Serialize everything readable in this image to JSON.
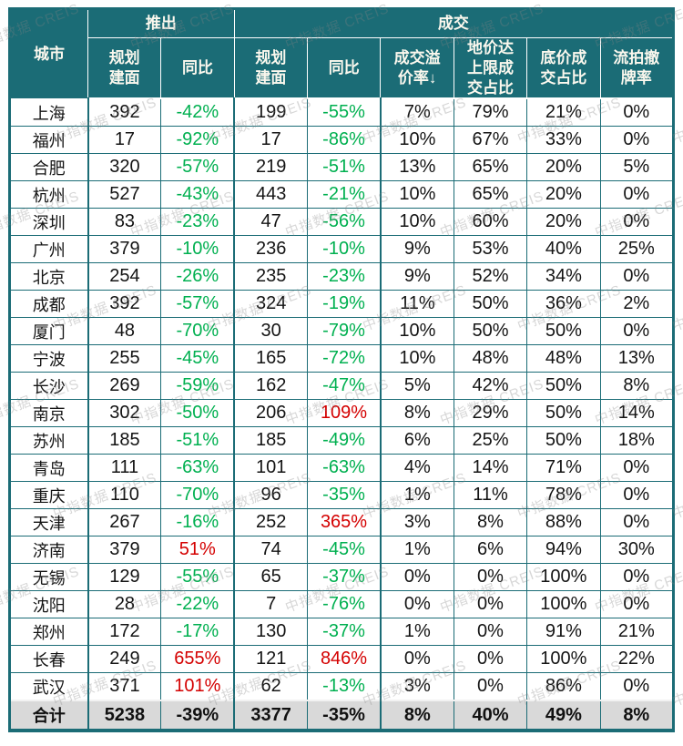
{
  "watermark": {
    "text": "中指数据 CREIS"
  },
  "colors": {
    "header_background": "#1B6C76",
    "header_text": "#FBF8EE",
    "negative_green": "#00B050",
    "positive_red": "#D40000",
    "grid_border": "#1B6C76",
    "total_row_background": "#D9D9D9"
  },
  "header": {
    "city": "城市",
    "groups": [
      {
        "label": "推出"
      },
      {
        "label": "成交"
      }
    ],
    "sub": [
      "规划\n建面",
      "同比",
      "规划\n建面",
      "同比",
      "成交溢\n价率↓",
      "地价达\n上限成\n交占比",
      "底价成\n交占比",
      "流拍撤\n牌率"
    ],
    "sort_icon": "down-arrow"
  },
  "chart_data": {
    "type": "table",
    "row_header": "城市",
    "column_groups": [
      {
        "label": "推出",
        "columns": [
          "规划建面",
          "同比"
        ]
      },
      {
        "label": "成交",
        "columns": [
          "规划建面",
          "同比",
          "成交溢价率",
          "地价达上限成交占比",
          "底价成交占比",
          "流拍撤牌率"
        ]
      }
    ],
    "rows": [
      {
        "city": "上海",
        "values": [
          "392",
          "-42%",
          "199",
          "-55%",
          "7%",
          "79%",
          "21%",
          "0%"
        ]
      },
      {
        "city": "福州",
        "values": [
          "17",
          "-92%",
          "17",
          "-86%",
          "10%",
          "67%",
          "33%",
          "0%"
        ]
      },
      {
        "city": "合肥",
        "values": [
          "320",
          "-57%",
          "219",
          "-51%",
          "13%",
          "65%",
          "20%",
          "5%"
        ]
      },
      {
        "city": "杭州",
        "values": [
          "527",
          "-43%",
          "443",
          "-21%",
          "10%",
          "65%",
          "20%",
          "0%"
        ]
      },
      {
        "city": "深圳",
        "values": [
          "83",
          "-23%",
          "47",
          "-56%",
          "10%",
          "60%",
          "20%",
          "0%"
        ]
      },
      {
        "city": "广州",
        "values": [
          "379",
          "-10%",
          "236",
          "-10%",
          "9%",
          "53%",
          "40%",
          "25%"
        ]
      },
      {
        "city": "北京",
        "values": [
          "254",
          "-26%",
          "235",
          "-23%",
          "9%",
          "52%",
          "34%",
          "0%"
        ]
      },
      {
        "city": "成都",
        "values": [
          "392",
          "-57%",
          "324",
          "-19%",
          "11%",
          "50%",
          "36%",
          "2%"
        ]
      },
      {
        "city": "厦门",
        "values": [
          "48",
          "-70%",
          "30",
          "-79%",
          "10%",
          "50%",
          "50%",
          "0%"
        ]
      },
      {
        "city": "宁波",
        "values": [
          "255",
          "-45%",
          "165",
          "-72%",
          "10%",
          "48%",
          "48%",
          "13%"
        ]
      },
      {
        "city": "长沙",
        "values": [
          "269",
          "-59%",
          "162",
          "-47%",
          "5%",
          "42%",
          "50%",
          "8%"
        ]
      },
      {
        "city": "南京",
        "values": [
          "302",
          "-50%",
          "206",
          "109%",
          "8%",
          "29%",
          "50%",
          "14%"
        ]
      },
      {
        "city": "苏州",
        "values": [
          "185",
          "-51%",
          "185",
          "-49%",
          "6%",
          "25%",
          "50%",
          "18%"
        ]
      },
      {
        "city": "青岛",
        "values": [
          "111",
          "-63%",
          "101",
          "-63%",
          "4%",
          "14%",
          "71%",
          "0%"
        ]
      },
      {
        "city": "重庆",
        "values": [
          "110",
          "-70%",
          "96",
          "-35%",
          "1%",
          "11%",
          "78%",
          "0%"
        ]
      },
      {
        "city": "天津",
        "values": [
          "267",
          "-16%",
          "252",
          "365%",
          "3%",
          "8%",
          "88%",
          "0%"
        ]
      },
      {
        "city": "济南",
        "values": [
          "379",
          "51%",
          "74",
          "-45%",
          "1%",
          "6%",
          "94%",
          "30%"
        ]
      },
      {
        "city": "无锡",
        "values": [
          "129",
          "-55%",
          "65",
          "-37%",
          "0%",
          "0%",
          "100%",
          "0%"
        ]
      },
      {
        "city": "沈阳",
        "values": [
          "28",
          "-22%",
          "7",
          "-76%",
          "0%",
          "0%",
          "100%",
          "0%"
        ]
      },
      {
        "city": "郑州",
        "values": [
          "172",
          "-17%",
          "130",
          "-37%",
          "1%",
          "0%",
          "91%",
          "21%"
        ]
      },
      {
        "city": "长春",
        "values": [
          "249",
          "655%",
          "121",
          "846%",
          "0%",
          "0%",
          "100%",
          "22%"
        ]
      },
      {
        "city": "武汉",
        "values": [
          "371",
          "101%",
          "62",
          "-13%",
          "3%",
          "0%",
          "86%",
          "0%"
        ]
      }
    ],
    "total": {
      "label": "合计",
      "values": [
        "5238",
        "-39%",
        "3377",
        "-35%",
        "8%",
        "40%",
        "49%",
        "8%"
      ]
    }
  }
}
